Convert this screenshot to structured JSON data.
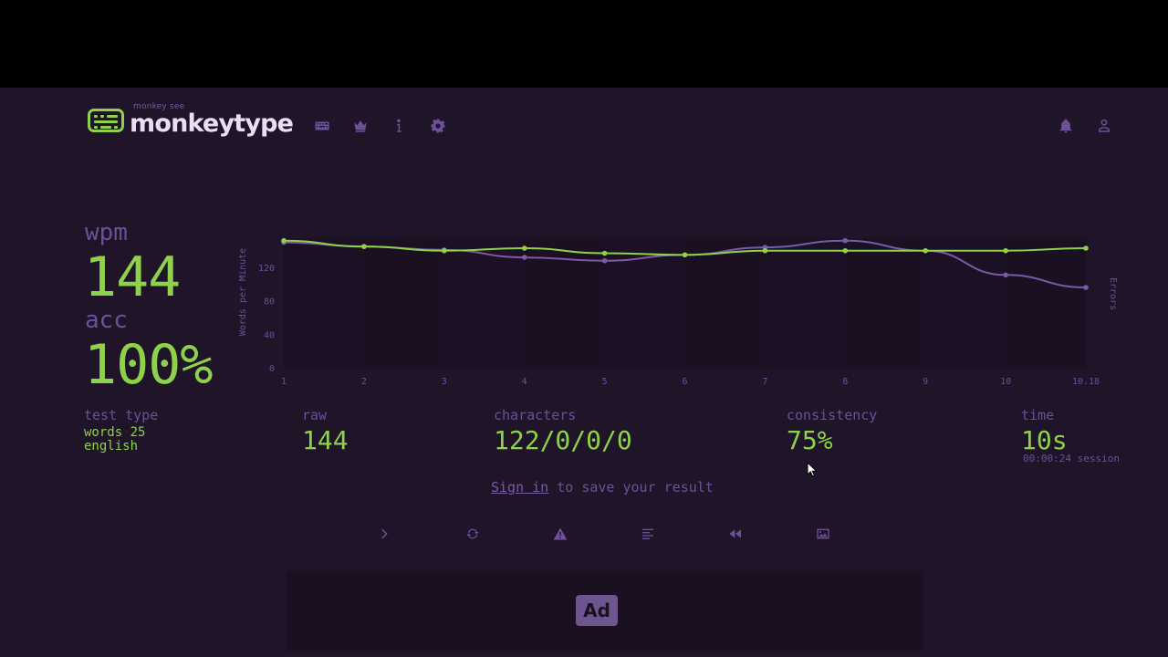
{
  "header": {
    "logo_sub": "monkey see",
    "logo_text": "monkeytype",
    "nav_icons": [
      "keyboard-icon",
      "crown-icon",
      "info-icon",
      "gear-icon"
    ],
    "right_icons": [
      "bell-icon",
      "user-icon"
    ]
  },
  "results": {
    "wpm_label": "wpm",
    "wpm_value": "144",
    "acc_label": "acc",
    "acc_value": "100%",
    "test_type_label": "test type",
    "test_type_mode": "words 25",
    "test_type_language": "english",
    "raw_label": "raw",
    "raw_value": "144",
    "characters_label": "characters",
    "characters_value": "122/0/0/0",
    "consistency_label": "consistency",
    "consistency_value": "75%",
    "time_label": "time",
    "time_value": "10s",
    "session_value": "00:00:24 session"
  },
  "signin": {
    "link": "Sign in",
    "rest": " to save your result"
  },
  "actions": [
    "next-test-icon",
    "restart-icon",
    "warning-icon",
    "word-history-icon",
    "replay-icon",
    "screenshot-icon"
  ],
  "ad": {
    "label": "Ad"
  },
  "colors": {
    "accent": "#8ed14a",
    "sub": "#6e4f99",
    "bg": "#1f1428",
    "text": "#e8e0f2"
  },
  "chart_data": {
    "type": "line",
    "x": [
      "1",
      "2",
      "3",
      "4",
      "5",
      "6",
      "7",
      "8",
      "9",
      "10",
      "10.18"
    ],
    "ylabel": "Words per Minute",
    "y2label": "Errors",
    "yticks": [
      0,
      40,
      80,
      120
    ],
    "ylim": [
      0,
      155
    ],
    "series": [
      {
        "values": [
          152,
          145,
          140,
          143,
          137,
          135,
          140,
          140,
          140,
          140,
          143
        ],
        "color": "#8ed14a"
      },
      {
        "values": [
          150,
          145,
          141,
          132,
          128,
          135,
          144,
          152,
          140,
          111,
          96
        ],
        "color": "#7a5aa6"
      }
    ],
    "grid": false
  }
}
